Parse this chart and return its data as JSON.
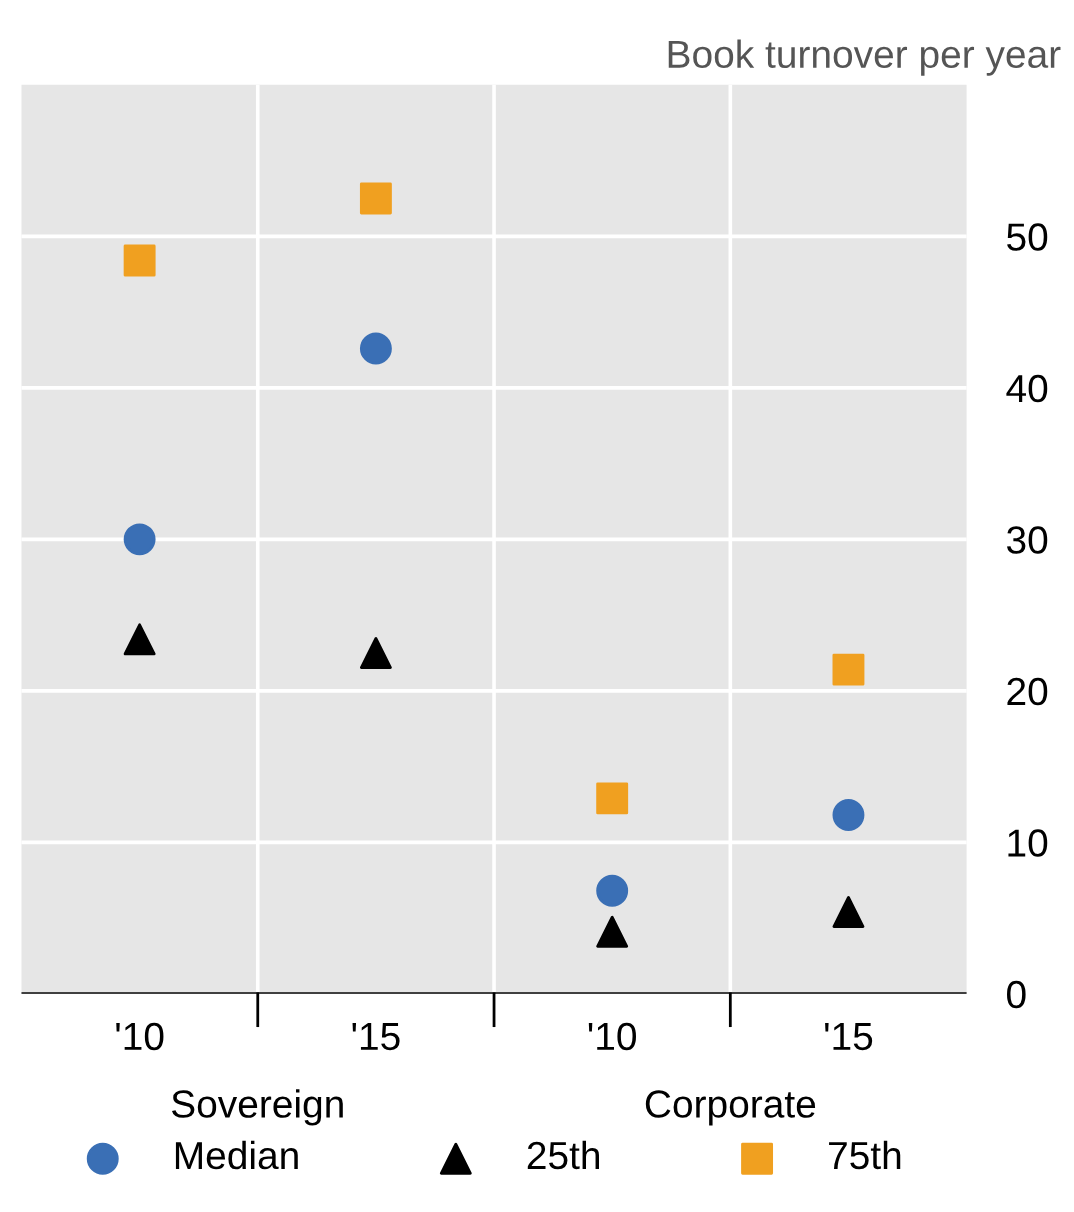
{
  "chart_data": {
    "type": "scatter",
    "ylabel": "Book turnover per year",
    "categories": [
      "'10",
      "'15",
      "'10",
      "'15"
    ],
    "annotations": [
      "Sovereign",
      "Corporate"
    ],
    "series": [
      {
        "name": "Median",
        "color": "#3a6fb5",
        "marker": "circle",
        "values": [
          30,
          42.6,
          6.8,
          11.8
        ]
      },
      {
        "name": "25th",
        "color": "#000000",
        "marker": "triangle",
        "values": [
          23.4,
          22.5,
          4.1,
          5.4
        ]
      },
      {
        "name": "75th",
        "color": "#f0a020",
        "marker": "square",
        "values": [
          48.4,
          52.5,
          12.9,
          21.4
        ]
      }
    ],
    "ylim": [
      0,
      60
    ],
    "yticks": [
      0,
      10,
      20,
      30,
      40,
      50
    ],
    "grid": true,
    "legend": "bottom"
  }
}
